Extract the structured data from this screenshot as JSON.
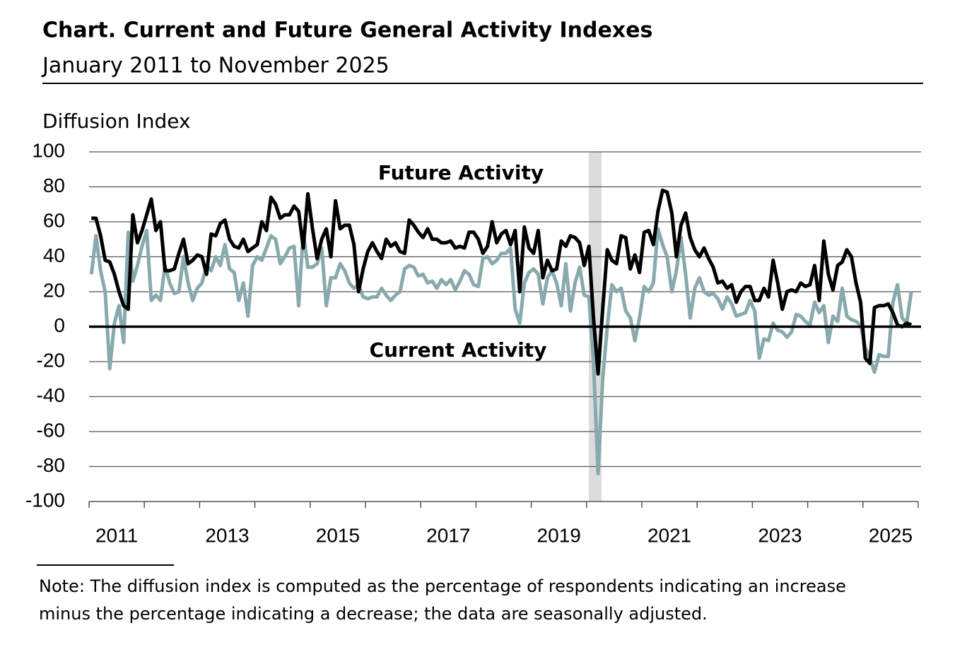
{
  "chart_data": {
    "type": "line",
    "title": "Chart. Current and Future General Activity Indexes",
    "subtitle": "January 2011 to November 2025",
    "y_label": "Diffusion Index",
    "note": [
      "Note: The diffusion index is computed as the percentage of respondents indicating an increase",
      "minus the percentage indicating a decrease; the data are seasonally adjusted."
    ],
    "categories": [
      null,
      null,
      null,
      null,
      null,
      null,
      "2011",
      null,
      null,
      null,
      null,
      null,
      null,
      null,
      null,
      null,
      null,
      null,
      null,
      null,
      null,
      null,
      null,
      null,
      null,
      null,
      null,
      null,
      null,
      null,
      "2013",
      null,
      null,
      null,
      null,
      null,
      null,
      null,
      null,
      null,
      null,
      null,
      null,
      null,
      null,
      null,
      null,
      null,
      null,
      null,
      null,
      null,
      null,
      null,
      "2015",
      null,
      null,
      null,
      null,
      null,
      null,
      null,
      null,
      null,
      null,
      null,
      null,
      null,
      null,
      null,
      null,
      null,
      null,
      null,
      null,
      null,
      null,
      null,
      "2017",
      null,
      null,
      null,
      null,
      null,
      null,
      null,
      null,
      null,
      null,
      null,
      null,
      null,
      null,
      null,
      null,
      null,
      null,
      null,
      null,
      null,
      null,
      null,
      "2019",
      null,
      null,
      null,
      null,
      null,
      null,
      null,
      null,
      null,
      null,
      null,
      null,
      null,
      null,
      null,
      null,
      null,
      null,
      null,
      null,
      null,
      null,
      null,
      "2021",
      null,
      null,
      null,
      null,
      null,
      null,
      null,
      null,
      null,
      null,
      null,
      null,
      null,
      null,
      null,
      null,
      null,
      null,
      null,
      null,
      null,
      null,
      null,
      "2023",
      null,
      null,
      null,
      null,
      null,
      null,
      null,
      null,
      null,
      null,
      null,
      null,
      null,
      null,
      null,
      null,
      null,
      null,
      null,
      null,
      null,
      null,
      null,
      "2025",
      null,
      null,
      null,
      null
    ],
    "series": [
      {
        "name": "Future Activity",
        "color": "#000000",
        "values": [
          62,
          62,
          52,
          38,
          37,
          30,
          20,
          12,
          10,
          64,
          48,
          55,
          64,
          73,
          55,
          60,
          32,
          32,
          33,
          42,
          50,
          36,
          38,
          41,
          40,
          30,
          53,
          52,
          59,
          61,
          50,
          46,
          45,
          50,
          43,
          45,
          47,
          60,
          55,
          74,
          70,
          62,
          64,
          64,
          69,
          66,
          45,
          76,
          56,
          39,
          50,
          56,
          40,
          72,
          56,
          58,
          58,
          47,
          20,
          33,
          43,
          48,
          43,
          39,
          50,
          46,
          48,
          43,
          42,
          61,
          58,
          54,
          51,
          56,
          50,
          50,
          48,
          48,
          49,
          45,
          46,
          45,
          54,
          54,
          50,
          42,
          46,
          60,
          48,
          53,
          55,
          47,
          55,
          20,
          57,
          45,
          42,
          55,
          28,
          38,
          32,
          33,
          49,
          46,
          52,
          51,
          48,
          35,
          46,
          5,
          -27,
          10,
          44,
          38,
          36,
          52,
          51,
          33,
          41,
          31,
          54,
          55,
          47,
          66,
          78,
          77,
          65,
          40,
          58,
          65,
          51,
          44,
          40,
          45,
          39,
          34,
          25,
          26,
          22,
          24,
          14,
          20,
          23,
          23,
          15,
          15,
          22,
          17,
          38,
          25,
          10,
          20,
          21,
          20,
          25,
          23,
          24,
          35,
          15,
          49,
          30,
          21,
          35,
          37,
          44,
          40,
          25,
          14,
          -18,
          -21,
          11,
          12,
          12,
          13,
          8,
          1,
          0,
          2,
          1
        ]
      },
      {
        "name": "Current Activity",
        "color": "#88a9ad",
        "values": [
          30,
          52,
          32,
          20,
          -24,
          2,
          12,
          -9,
          54,
          26,
          35,
          46,
          55,
          15,
          18,
          15,
          35,
          25,
          19,
          20,
          40,
          25,
          15,
          22,
          25,
          35,
          32,
          40,
          35,
          47,
          33,
          31,
          15,
          25,
          6,
          35,
          40,
          38,
          45,
          52,
          50,
          36,
          40,
          45,
          46,
          12,
          54,
          34,
          34,
          36,
          45,
          12,
          28,
          28,
          36,
          32,
          25,
          22,
          24,
          17,
          16,
          17,
          17,
          22,
          18,
          15,
          18,
          20,
          33,
          35,
          34,
          29,
          30,
          25,
          26,
          22,
          27,
          24,
          27,
          21,
          26,
          32,
          30,
          24,
          23,
          39,
          40,
          36,
          38,
          42,
          42,
          45,
          10,
          2,
          25,
          31,
          33,
          30,
          13,
          28,
          32,
          25,
          12,
          36,
          9,
          25,
          34,
          18,
          17,
          -20,
          -84,
          -30,
          0,
          24,
          20,
          22,
          9,
          5,
          -8,
          5,
          23,
          20,
          25,
          56,
          47,
          40,
          20,
          32,
          51,
          30,
          5,
          22,
          28,
          20,
          18,
          19,
          16,
          10,
          17,
          13,
          6,
          7,
          8,
          15,
          9,
          -18,
          -7,
          -8,
          2,
          -2,
          -3,
          -6,
          -3,
          7,
          6,
          3,
          1,
          14,
          8,
          12,
          -9,
          6,
          3,
          22,
          6,
          4,
          3,
          1,
          -12,
          -18,
          -26,
          -16,
          -17,
          -17,
          14,
          24,
          5,
          2,
          20
        ]
      }
    ],
    "ylim": [
      -100,
      100
    ],
    "yticks": [
      -100,
      -80,
      -60,
      -40,
      -20,
      0,
      20,
      40,
      60,
      80,
      100
    ],
    "grid": true
  }
}
